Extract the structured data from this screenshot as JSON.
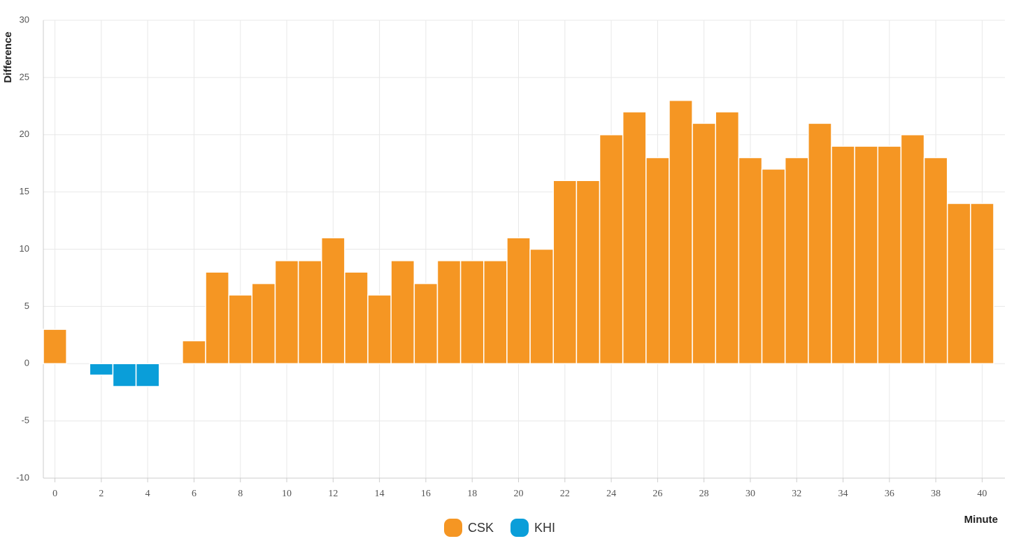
{
  "chart_data": {
    "type": "bar",
    "y_label": "Difference",
    "x_label": "Minute",
    "x": [
      0,
      1,
      2,
      3,
      4,
      5,
      6,
      7,
      8,
      9,
      10,
      11,
      12,
      13,
      14,
      15,
      16,
      17,
      18,
      19,
      20,
      21,
      22,
      23,
      24,
      25,
      26,
      27,
      28,
      29,
      30,
      31,
      32,
      33,
      34,
      35,
      36,
      37,
      38,
      39,
      40
    ],
    "series": [
      {
        "name": "CSK",
        "color": "#f59623",
        "values": [
          3,
          null,
          null,
          null,
          null,
          null,
          2,
          8,
          6,
          7,
          9,
          9,
          11,
          8,
          6,
          9,
          7,
          9,
          9,
          9,
          11,
          10,
          16,
          16,
          20,
          22,
          18,
          23,
          21,
          22,
          18,
          17,
          18,
          21,
          19,
          19,
          19,
          20,
          18,
          14,
          14
        ]
      },
      {
        "name": "KHI",
        "color": "#0a9ed9",
        "values": [
          null,
          null,
          -1,
          -2,
          -2,
          null,
          null,
          null,
          null,
          null,
          null,
          null,
          null,
          null,
          null,
          null,
          null,
          null,
          null,
          null,
          null,
          null,
          null,
          null,
          null,
          null,
          null,
          null,
          null,
          null,
          null,
          null,
          null,
          null,
          null,
          null,
          null,
          null,
          null,
          null,
          null
        ]
      }
    ],
    "xlim": [
      -0.5,
      40.5
    ],
    "xticks": [
      0,
      2,
      4,
      6,
      8,
      10,
      12,
      14,
      16,
      18,
      20,
      22,
      24,
      26,
      28,
      30,
      32,
      34,
      36,
      38,
      40
    ],
    "ylim": [
      -10,
      30
    ],
    "yticks": [
      -10,
      -5,
      0,
      5,
      10,
      15,
      20,
      25,
      30
    ],
    "grid": true,
    "legend": "bottom"
  }
}
